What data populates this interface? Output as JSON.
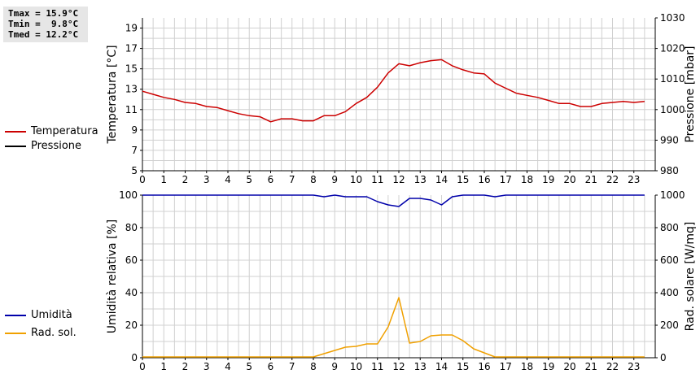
{
  "stats": {
    "tmax": "Tmax = 15.9°C",
    "tmin": "Tmin =  9.8°C",
    "tmed": "Tmed = 12.2°C"
  },
  "colors": {
    "temperature": "#cc0000",
    "pressure": "#000000",
    "humidity": "#0000aa",
    "radiation": "#f0a000",
    "grid": "#d0d0d0"
  },
  "legend_top": [
    {
      "label": "Temperatura",
      "color": "#cc0000"
    },
    {
      "label": "Pressione",
      "color": "#000000"
    }
  ],
  "legend_bottom": [
    {
      "label": "Umidità",
      "color": "#0000aa"
    },
    {
      "label": "Rad. sol.",
      "color": "#f0a000"
    }
  ],
  "chart_data": [
    {
      "type": "line",
      "ylabel_left": "Temperatura [°C]",
      "ylabel_right": "Pressione [mbar]",
      "xlim": [
        0,
        24
      ],
      "x_ticks": [
        "0",
        "1",
        "2",
        "3",
        "4",
        "5",
        "6",
        "7",
        "8",
        "9",
        "10",
        "11",
        "12",
        "13",
        "14",
        "15",
        "16",
        "17",
        "18",
        "19",
        "20",
        "21",
        "22",
        "23"
      ],
      "ylim_left": [
        5,
        20
      ],
      "y_ticks_left": [
        "5",
        "7",
        "9",
        "11",
        "13",
        "15",
        "17",
        "19"
      ],
      "ylim_right": [
        980,
        1030
      ],
      "y_ticks_right": [
        "980",
        "990",
        "1000",
        "1010",
        "1020",
        "1030"
      ],
      "grid": true,
      "series": [
        {
          "name": "Temperatura",
          "axis": "left",
          "x": [
            0,
            0.5,
            1,
            1.5,
            2,
            2.5,
            3,
            3.5,
            4,
            4.5,
            5,
            5.5,
            6,
            6.5,
            7,
            7.5,
            8,
            8.5,
            9,
            9.5,
            10,
            10.5,
            11,
            11.5,
            12,
            12.5,
            13,
            13.5,
            14,
            14.5,
            15,
            15.5,
            16,
            16.5,
            17,
            17.5,
            18,
            18.5,
            19,
            19.5,
            20,
            20.5,
            21,
            21.5,
            22,
            22.5,
            23,
            23.5
          ],
          "values": [
            12.8,
            12.5,
            12.2,
            12.0,
            11.7,
            11.6,
            11.3,
            11.2,
            10.9,
            10.6,
            10.4,
            10.3,
            9.8,
            10.1,
            10.1,
            9.9,
            9.9,
            10.4,
            10.4,
            10.8,
            11.6,
            12.2,
            13.2,
            14.6,
            15.5,
            15.3,
            15.6,
            15.8,
            15.9,
            15.3,
            14.9,
            14.6,
            14.5,
            13.6,
            13.1,
            12.6,
            12.4,
            12.2,
            11.9,
            11.6,
            11.6,
            11.3,
            11.3,
            11.6,
            11.7,
            11.8,
            11.7,
            11.8
          ]
        },
        {
          "name": "Pressione",
          "axis": "right",
          "x": [],
          "values": []
        }
      ]
    },
    {
      "type": "line",
      "ylabel_left": "Umidità relativa [%]",
      "ylabel_right": "Rad. solare [W/mq]",
      "xlim": [
        0,
        24
      ],
      "x_ticks": [
        "0",
        "1",
        "2",
        "3",
        "4",
        "5",
        "6",
        "7",
        "8",
        "9",
        "10",
        "11",
        "12",
        "13",
        "14",
        "15",
        "16",
        "17",
        "18",
        "19",
        "20",
        "21",
        "22",
        "23"
      ],
      "ylim_left": [
        0,
        100
      ],
      "y_ticks_left": [
        "0",
        "20",
        "40",
        "60",
        "80",
        "100"
      ],
      "ylim_right": [
        0,
        1000
      ],
      "y_ticks_right": [
        "0",
        "200",
        "400",
        "600",
        "800",
        "1000"
      ],
      "grid": true,
      "series": [
        {
          "name": "Umidità",
          "axis": "left",
          "x": [
            0,
            8,
            8.5,
            9,
            9.5,
            10,
            10.5,
            11,
            11.5,
            12,
            12.5,
            13,
            13.5,
            14,
            14.5,
            15,
            15.5,
            16,
            16.5,
            17,
            23.5
          ],
          "values": [
            100,
            100,
            99,
            100,
            99,
            99,
            99,
            96,
            94,
            93,
            98,
            98,
            97,
            94,
            99,
            100,
            100,
            100,
            99,
            100,
            100
          ]
        },
        {
          "name": "Rad. sol.",
          "axis": "right",
          "x": [
            0,
            8,
            8.5,
            9,
            9.5,
            10,
            10.5,
            11,
            11.5,
            12,
            12.5,
            13,
            13.5,
            14,
            14.5,
            15,
            15.5,
            16,
            16.5,
            17,
            23.5
          ],
          "values": [
            5,
            5,
            25,
            45,
            65,
            70,
            85,
            85,
            190,
            370,
            90,
            100,
            135,
            140,
            140,
            105,
            55,
            30,
            5,
            5,
            5
          ]
        }
      ]
    }
  ]
}
